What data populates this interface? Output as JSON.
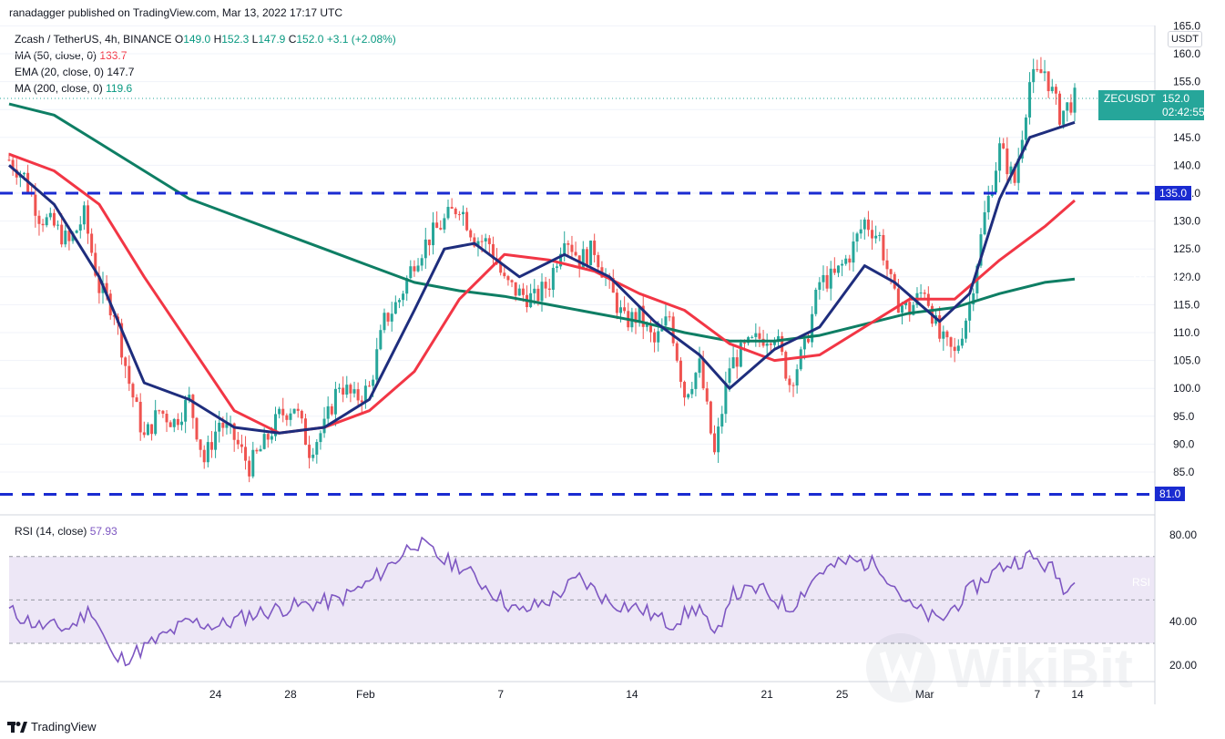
{
  "header": {
    "published": "ranadagger published on TradingView.com, Mar 13, 2022 17:17 UTC"
  },
  "legend": {
    "symbol": "Zcash / TetherUS, 4h, BINANCE",
    "o_label": "O",
    "o": "149.0",
    "h_label": "H",
    "h": "152.3",
    "l_label": "L",
    "l": "147.9",
    "c_label": "C",
    "c": "152.0",
    "change": "+3.1 (+2.08%)",
    "ma50_label": "MA (50, close, 0)",
    "ma50": "133.7",
    "ema20_label": "EMA (20, close, 0)",
    "ema20": "147.7",
    "ma200_label": "MA (200, close, 0)",
    "ma200": "119.6"
  },
  "rsi_legend": {
    "label": "RSI (14, close)",
    "value": "57.93"
  },
  "currency": "USDT",
  "tags": {
    "symbol_name": "ZECUSDT",
    "symbol_price": "152.0",
    "countdown": "02:42:55",
    "ema_name": "EMA",
    "ema_value": "147.7",
    "level_135": "135.0",
    "ma50_name": "MA",
    "ma50_value": "133.7",
    "ma200_name": "MA",
    "ma200_value": "119.6",
    "level_81": "81.0",
    "rsi_name": "RSI",
    "rsi_value": "57.93"
  },
  "footer": {
    "brand": "TradingView"
  },
  "watermark": "WikiBit",
  "colors": {
    "up": "#26a69a",
    "down": "#ef5350",
    "ema20": "#1e2d7d",
    "ma50": "#f23645",
    "ma200": "#0e7e64",
    "level": "#1a2bd1",
    "rsi": "#7e57c2",
    "rsi_band": "#ede7f6"
  },
  "chart_data": [
    {
      "type": "candlestick",
      "title": "Zcash / TetherUS, 4h, BINANCE",
      "y_axis_ticks": [
        85.0,
        90.0,
        95.0,
        100.0,
        105.0,
        110.0,
        115.0,
        120.0,
        125.0,
        130.0,
        135.0,
        140.0,
        145.0,
        150.0,
        155.0,
        160.0,
        165.0
      ],
      "x_axis_ticks": [
        "24",
        "28",
        "Feb",
        "7",
        "14",
        "21",
        "25",
        "Mar",
        "7",
        "14"
      ],
      "horizontal_levels": [
        135.0,
        81.0
      ],
      "last_price": 152.0,
      "close_path": [
        {
          "t": 0,
          "v": 141
        },
        {
          "t": 4,
          "v": 138
        },
        {
          "t": 8,
          "v": 131
        },
        {
          "t": 12,
          "v": 129
        },
        {
          "t": 16,
          "v": 126
        },
        {
          "t": 20,
          "v": 131
        },
        {
          "t": 24,
          "v": 118
        },
        {
          "t": 28,
          "v": 114
        },
        {
          "t": 32,
          "v": 101
        },
        {
          "t": 36,
          "v": 91
        },
        {
          "t": 40,
          "v": 96
        },
        {
          "t": 44,
          "v": 94
        },
        {
          "t": 48,
          "v": 98
        },
        {
          "t": 52,
          "v": 87
        },
        {
          "t": 56,
          "v": 94
        },
        {
          "t": 60,
          "v": 91
        },
        {
          "t": 64,
          "v": 86
        },
        {
          "t": 68,
          "v": 90
        },
        {
          "t": 72,
          "v": 95
        },
        {
          "t": 76,
          "v": 97
        },
        {
          "t": 80,
          "v": 89
        },
        {
          "t": 84,
          "v": 93
        },
        {
          "t": 88,
          "v": 101
        },
        {
          "t": 92,
          "v": 98
        },
        {
          "t": 96,
          "v": 100
        },
        {
          "t": 100,
          "v": 112
        },
        {
          "t": 104,
          "v": 116
        },
        {
          "t": 108,
          "v": 123
        },
        {
          "t": 112,
          "v": 127
        },
        {
          "t": 116,
          "v": 130
        },
        {
          "t": 120,
          "v": 133
        },
        {
          "t": 124,
          "v": 127
        },
        {
          "t": 128,
          "v": 126
        },
        {
          "t": 132,
          "v": 119
        },
        {
          "t": 136,
          "v": 117
        },
        {
          "t": 140,
          "v": 116
        },
        {
          "t": 144,
          "v": 119
        },
        {
          "t": 148,
          "v": 128
        },
        {
          "t": 152,
          "v": 123
        },
        {
          "t": 156,
          "v": 125
        },
        {
          "t": 160,
          "v": 118
        },
        {
          "t": 164,
          "v": 112
        },
        {
          "t": 168,
          "v": 113
        },
        {
          "t": 172,
          "v": 108
        },
        {
          "t": 176,
          "v": 113
        },
        {
          "t": 180,
          "v": 99
        },
        {
          "t": 184,
          "v": 104
        },
        {
          "t": 188,
          "v": 88
        },
        {
          "t": 192,
          "v": 104
        },
        {
          "t": 196,
          "v": 107
        },
        {
          "t": 200,
          "v": 109
        },
        {
          "t": 204,
          "v": 110
        },
        {
          "t": 208,
          "v": 101
        },
        {
          "t": 212,
          "v": 107
        },
        {
          "t": 216,
          "v": 119
        },
        {
          "t": 220,
          "v": 120
        },
        {
          "t": 224,
          "v": 124
        },
        {
          "t": 228,
          "v": 130
        },
        {
          "t": 232,
          "v": 127
        },
        {
          "t": 236,
          "v": 116
        },
        {
          "t": 240,
          "v": 114
        },
        {
          "t": 244,
          "v": 118
        },
        {
          "t": 248,
          "v": 109
        },
        {
          "t": 252,
          "v": 106
        },
        {
          "t": 256,
          "v": 115
        },
        {
          "t": 260,
          "v": 131
        },
        {
          "t": 264,
          "v": 143
        },
        {
          "t": 268,
          "v": 137
        },
        {
          "t": 272,
          "v": 155
        },
        {
          "t": 276,
          "v": 157
        },
        {
          "t": 280,
          "v": 149
        },
        {
          "t": 284,
          "v": 152
        }
      ],
      "ema20_path": [
        {
          "t": 0,
          "v": 140
        },
        {
          "t": 12,
          "v": 133
        },
        {
          "t": 24,
          "v": 120
        },
        {
          "t": 36,
          "v": 101
        },
        {
          "t": 48,
          "v": 98
        },
        {
          "t": 60,
          "v": 93
        },
        {
          "t": 72,
          "v": 92
        },
        {
          "t": 84,
          "v": 93
        },
        {
          "t": 96,
          "v": 98
        },
        {
          "t": 108,
          "v": 114
        },
        {
          "t": 116,
          "v": 125
        },
        {
          "t": 124,
          "v": 126
        },
        {
          "t": 136,
          "v": 120
        },
        {
          "t": 148,
          "v": 124
        },
        {
          "t": 160,
          "v": 120
        },
        {
          "t": 172,
          "v": 112
        },
        {
          "t": 184,
          "v": 106
        },
        {
          "t": 192,
          "v": 100
        },
        {
          "t": 204,
          "v": 107
        },
        {
          "t": 216,
          "v": 111
        },
        {
          "t": 228,
          "v": 122
        },
        {
          "t": 236,
          "v": 119
        },
        {
          "t": 248,
          "v": 112
        },
        {
          "t": 256,
          "v": 117
        },
        {
          "t": 264,
          "v": 134
        },
        {
          "t": 272,
          "v": 145
        },
        {
          "t": 284,
          "v": 147.7
        }
      ],
      "ma50_path": [
        {
          "t": 0,
          "v": 142
        },
        {
          "t": 12,
          "v": 139
        },
        {
          "t": 24,
          "v": 133
        },
        {
          "t": 36,
          "v": 120
        },
        {
          "t": 48,
          "v": 108
        },
        {
          "t": 60,
          "v": 96
        },
        {
          "t": 72,
          "v": 92
        },
        {
          "t": 84,
          "v": 93
        },
        {
          "t": 96,
          "v": 96
        },
        {
          "t": 108,
          "v": 103
        },
        {
          "t": 120,
          "v": 116
        },
        {
          "t": 132,
          "v": 124
        },
        {
          "t": 144,
          "v": 123
        },
        {
          "t": 156,
          "v": 121
        },
        {
          "t": 168,
          "v": 117
        },
        {
          "t": 180,
          "v": 114
        },
        {
          "t": 192,
          "v": 108
        },
        {
          "t": 204,
          "v": 105
        },
        {
          "t": 216,
          "v": 106
        },
        {
          "t": 228,
          "v": 111
        },
        {
          "t": 240,
          "v": 116
        },
        {
          "t": 252,
          "v": 116
        },
        {
          "t": 264,
          "v": 123
        },
        {
          "t": 276,
          "v": 129
        },
        {
          "t": 284,
          "v": 133.7
        }
      ],
      "ma200_path": [
        {
          "t": 0,
          "v": 151
        },
        {
          "t": 12,
          "v": 149
        },
        {
          "t": 24,
          "v": 144
        },
        {
          "t": 36,
          "v": 139
        },
        {
          "t": 48,
          "v": 134
        },
        {
          "t": 60,
          "v": 131
        },
        {
          "t": 72,
          "v": 128
        },
        {
          "t": 84,
          "v": 125
        },
        {
          "t": 96,
          "v": 122
        },
        {
          "t": 108,
          "v": 119
        },
        {
          "t": 120,
          "v": 117.5
        },
        {
          "t": 132,
          "v": 116.5
        },
        {
          "t": 144,
          "v": 115
        },
        {
          "t": 156,
          "v": 113.5
        },
        {
          "t": 168,
          "v": 112
        },
        {
          "t": 180,
          "v": 110
        },
        {
          "t": 192,
          "v": 108.5
        },
        {
          "t": 204,
          "v": 108.5
        },
        {
          "t": 216,
          "v": 109.5
        },
        {
          "t": 228,
          "v": 111.5
        },
        {
          "t": 240,
          "v": 113.5
        },
        {
          "t": 252,
          "v": 114.5
        },
        {
          "t": 264,
          "v": 117
        },
        {
          "t": 276,
          "v": 119
        },
        {
          "t": 284,
          "v": 119.6
        }
      ]
    },
    {
      "type": "line",
      "title": "RSI (14, close)",
      "y_axis_ticks": [
        20.0,
        40.0,
        80.0
      ],
      "band": [
        30,
        70
      ],
      "midline": 50,
      "last_value": 57.93,
      "values": [
        {
          "t": 0,
          "v": 45
        },
        {
          "t": 8,
          "v": 38
        },
        {
          "t": 16,
          "v": 37
        },
        {
          "t": 22,
          "v": 46
        },
        {
          "t": 28,
          "v": 22
        },
        {
          "t": 32,
          "v": 24
        },
        {
          "t": 40,
          "v": 32
        },
        {
          "t": 48,
          "v": 40
        },
        {
          "t": 56,
          "v": 38
        },
        {
          "t": 64,
          "v": 43
        },
        {
          "t": 72,
          "v": 46
        },
        {
          "t": 80,
          "v": 48
        },
        {
          "t": 88,
          "v": 50
        },
        {
          "t": 96,
          "v": 58
        },
        {
          "t": 104,
          "v": 70
        },
        {
          "t": 108,
          "v": 77
        },
        {
          "t": 112,
          "v": 73
        },
        {
          "t": 116,
          "v": 68
        },
        {
          "t": 120,
          "v": 66
        },
        {
          "t": 128,
          "v": 55
        },
        {
          "t": 136,
          "v": 44
        },
        {
          "t": 144,
          "v": 50
        },
        {
          "t": 152,
          "v": 60
        },
        {
          "t": 160,
          "v": 49
        },
        {
          "t": 168,
          "v": 46
        },
        {
          "t": 176,
          "v": 39
        },
        {
          "t": 184,
          "v": 47
        },
        {
          "t": 188,
          "v": 31
        },
        {
          "t": 192,
          "v": 52
        },
        {
          "t": 200,
          "v": 55
        },
        {
          "t": 208,
          "v": 46
        },
        {
          "t": 216,
          "v": 63
        },
        {
          "t": 224,
          "v": 68
        },
        {
          "t": 232,
          "v": 66
        },
        {
          "t": 240,
          "v": 47
        },
        {
          "t": 248,
          "v": 40
        },
        {
          "t": 256,
          "v": 54
        },
        {
          "t": 264,
          "v": 65
        },
        {
          "t": 272,
          "v": 70
        },
        {
          "t": 278,
          "v": 64
        },
        {
          "t": 282,
          "v": 54
        },
        {
          "t": 284,
          "v": 57.93
        }
      ]
    }
  ]
}
